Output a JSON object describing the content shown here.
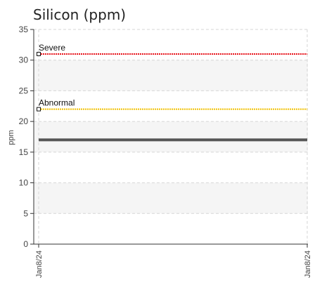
{
  "chart_data": {
    "type": "line",
    "title": "Silicon (ppm)",
    "ylabel": "ppm",
    "xlabel": "",
    "ylim": [
      0,
      35
    ],
    "yticks": [
      0,
      5,
      10,
      15,
      20,
      25,
      30,
      35
    ],
    "x": [
      "Jan8/24",
      "Jan8/24"
    ],
    "grid": true,
    "series": [
      {
        "key": "severe",
        "name": "Severe",
        "values": [
          31,
          31
        ],
        "color": "#e8141c",
        "style": "dotted"
      },
      {
        "key": "abnormal",
        "name": "Abnormal",
        "values": [
          22,
          22
        ],
        "color": "#f0c000",
        "style": "dotted"
      },
      {
        "key": "measured",
        "name": "",
        "values": [
          17,
          17
        ],
        "color": "#555555",
        "style": "solid"
      }
    ]
  }
}
